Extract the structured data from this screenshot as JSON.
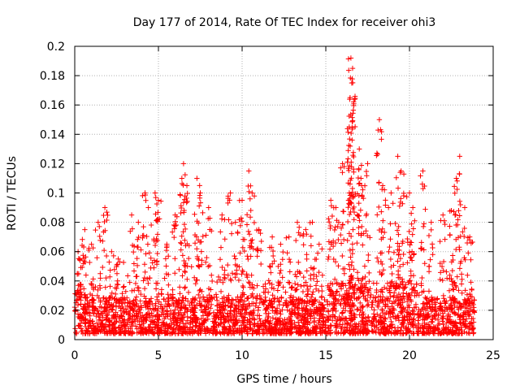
{
  "chart_data": {
    "type": "scatter",
    "title": "Day 177 of 2014, Rate Of TEC Index for receiver ohi3",
    "xlabel": "GPS time / hours",
    "ylabel": "ROTI / TECUs",
    "xlim": [
      0,
      25
    ],
    "ylim": [
      0,
      0.2
    ],
    "xticks": [
      0,
      5,
      10,
      15,
      20,
      25
    ],
    "yticks": [
      0,
      0.02,
      0.04,
      0.06,
      0.08,
      0.1,
      0.12,
      0.14,
      0.16,
      0.18,
      0.2
    ],
    "ytick_labels": [
      "0",
      "0.02",
      "0.04",
      "0.06",
      "0.08",
      "0.1",
      "0.12",
      "0.14",
      "0.16",
      "0.18",
      "0.2"
    ],
    "grid": true,
    "marker": "+",
    "color": "#ff0000",
    "x_coverage_hours": [
      0,
      23.9
    ],
    "series": [
      {
        "name": "ROTI",
        "x": [
          0.2,
          0.3,
          0.6,
          1.0,
          1.4,
          1.8,
          2.2,
          2.6,
          3.4,
          3.8,
          4.2,
          4.4,
          4.8,
          5.0,
          5.5,
          6.0,
          6.4,
          6.5,
          6.7,
          7.3,
          7.5,
          8.0,
          8.8,
          9.3,
          9.6,
          10.0,
          10.4,
          10.6,
          11.0,
          11.8,
          12.3,
          12.8,
          13.3,
          13.8,
          14.2,
          14.6,
          15.3,
          15.6,
          16.0,
          16.4,
          16.45,
          16.5,
          16.55,
          16.6,
          17.0,
          17.1,
          17.5,
          18.2,
          18.4,
          18.9,
          19.3,
          19.5,
          20.0,
          20.2,
          20.8,
          21.3,
          22.0,
          22.5,
          22.8,
          23.0,
          23.3,
          23.6
        ],
        "y": [
          0.06,
          0.055,
          0.075,
          0.065,
          0.08,
          0.09,
          0.06,
          0.055,
          0.085,
          0.08,
          0.1,
          0.09,
          0.1,
          0.095,
          0.065,
          0.085,
          0.11,
          0.12,
          0.105,
          0.11,
          0.1,
          0.09,
          0.085,
          0.1,
          0.08,
          0.095,
          0.115,
          0.1,
          0.075,
          0.07,
          0.065,
          0.07,
          0.08,
          0.075,
          0.08,
          0.065,
          0.095,
          0.09,
          0.12,
          0.145,
          0.165,
          0.192,
          0.175,
          0.185,
          0.13,
          0.11,
          0.12,
          0.15,
          0.105,
          0.1,
          0.125,
          0.115,
          0.1,
          0.09,
          0.115,
          0.08,
          0.085,
          0.088,
          0.11,
          0.125,
          0.09,
          0.07
        ]
      }
    ]
  }
}
